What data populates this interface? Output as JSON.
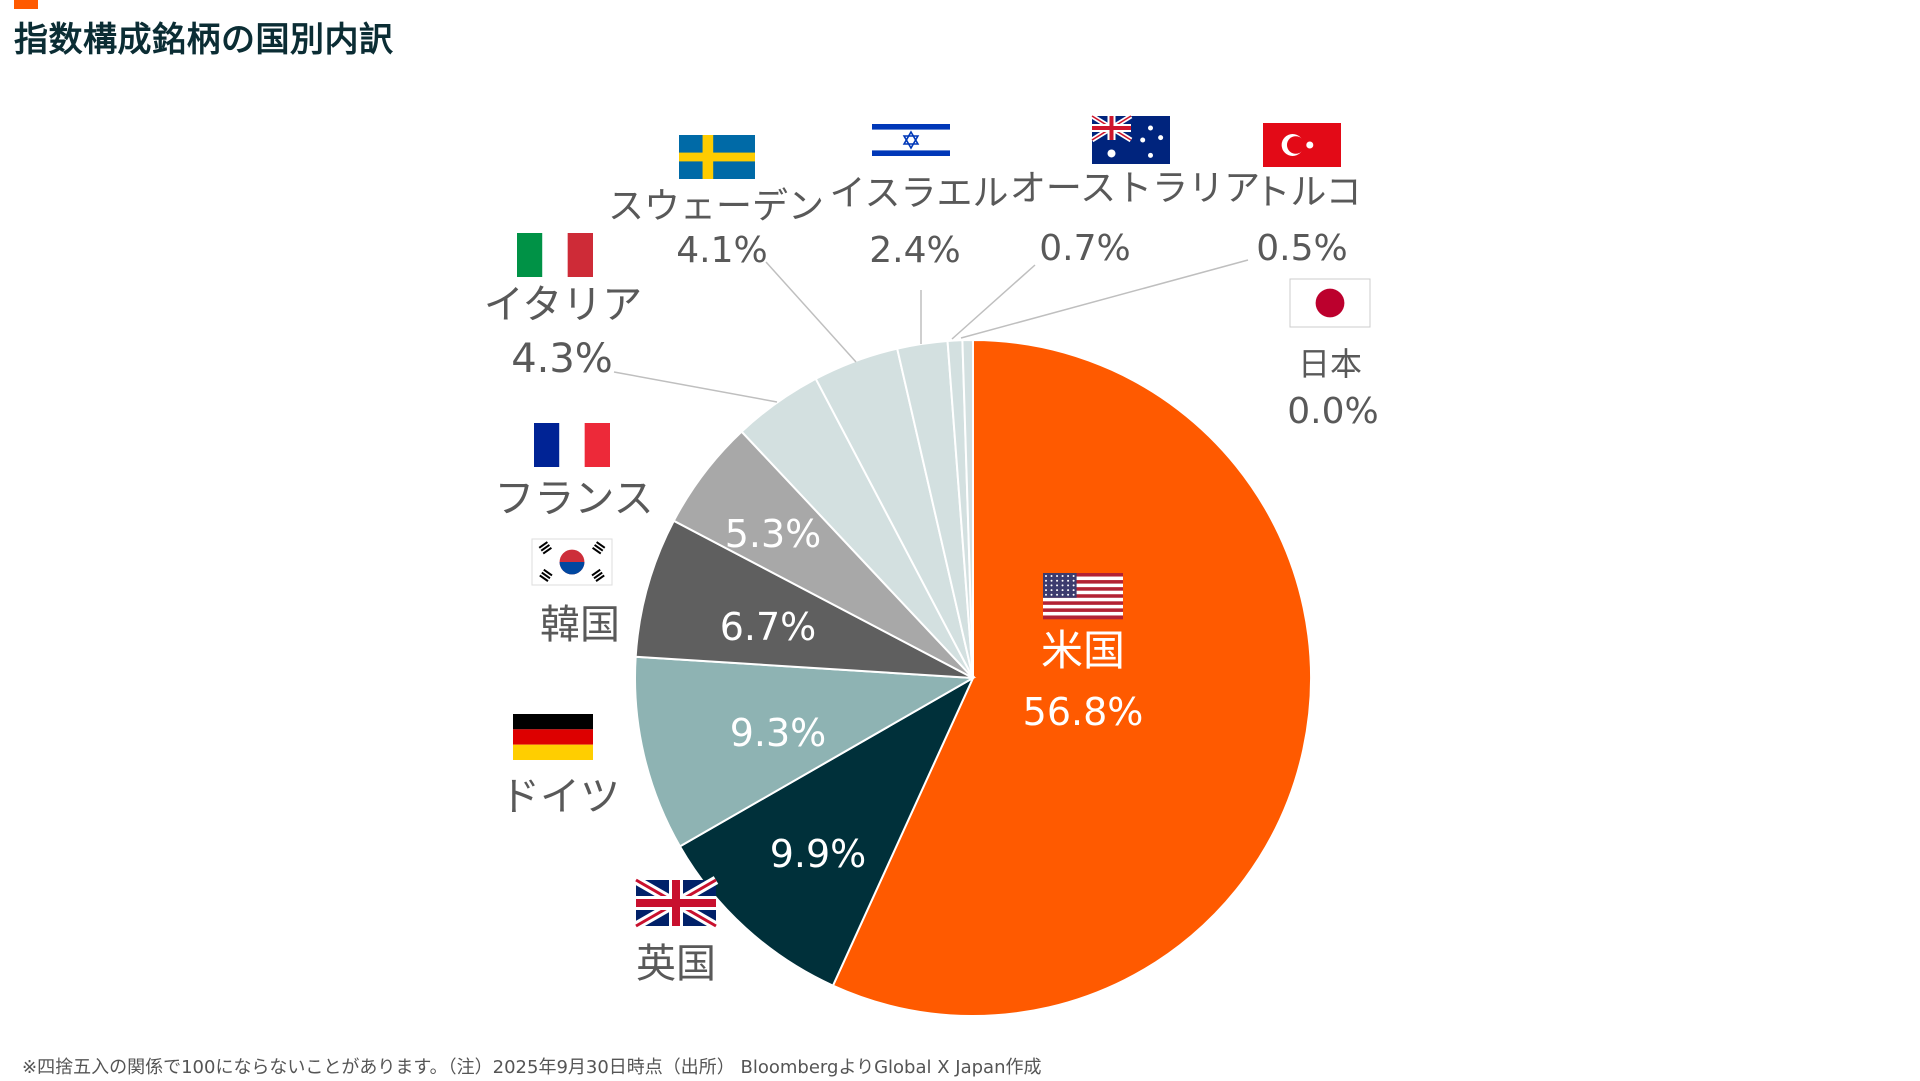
{
  "header": {
    "title": "指数構成銘柄の国別内訳"
  },
  "footer": {
    "note": "※四捨五入の関係で100にならないことがあります。（注）2025年9月30日時点（出所） BloombergよりGlobal X Japan作成"
  },
  "colors": {
    "accent": "#ff5a00",
    "title": "#0b2d34"
  },
  "chart_data": {
    "type": "pie",
    "slices": [
      {
        "name": "米国",
        "value": 56.8,
        "label": "56.8%",
        "color": "#ff5a00",
        "flag": "usa-flag"
      },
      {
        "name": "英国",
        "value": 9.9,
        "label": "9.9%",
        "color": "#00303a",
        "flag": "uk-flag"
      },
      {
        "name": "ドイツ",
        "value": 9.3,
        "label": "9.3%",
        "color": "#8eb3b3",
        "flag": "germany-flag"
      },
      {
        "name": "韓国",
        "value": 6.7,
        "label": "6.7%",
        "color": "#5f5f5f",
        "flag": "korea-flag"
      },
      {
        "name": "フランス",
        "value": 5.3,
        "label": "5.3%",
        "color": "#a8a8a8",
        "flag": "france-flag"
      },
      {
        "name": "イタリア",
        "value": 4.3,
        "label": "4.3%",
        "color": "#d3e0e0",
        "flag": "italy-flag"
      },
      {
        "name": "スウェーデン",
        "value": 4.1,
        "label": "4.1%",
        "color": "#d3e0e0",
        "flag": "sweden-flag"
      },
      {
        "name": "イスラエル",
        "value": 2.4,
        "label": "2.4%",
        "color": "#d3e0e0",
        "flag": "israel-flag"
      },
      {
        "name": "オーストラリア",
        "value": 0.7,
        "label": "0.7%",
        "color": "#d3e0e0",
        "flag": "australia-flag"
      },
      {
        "name": "トルコ",
        "value": 0.5,
        "label": "0.5%",
        "color": "#d3e0e0",
        "flag": "turkey-flag"
      },
      {
        "name": "日本",
        "value": 0.0,
        "label": "0.0%",
        "color": "#d3e0e0",
        "flag": "japan-flag"
      }
    ]
  }
}
